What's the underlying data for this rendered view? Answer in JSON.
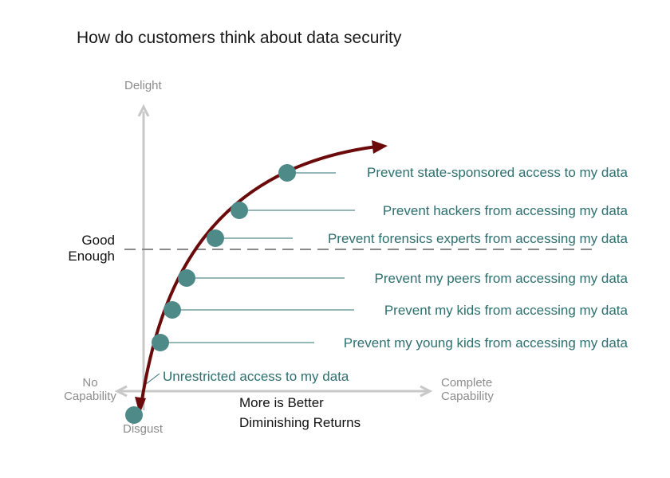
{
  "title": "How do customers think about data security",
  "axes": {
    "top": "Delight",
    "bottom": "Disgust",
    "left": "No Capability",
    "right": "Complete Capability"
  },
  "threshold_label": "Good Enough",
  "curve_notes": {
    "line1": "More is Better",
    "line2": "Diminishing Returns"
  },
  "items": [
    "Unrestricted access to my data",
    "Prevent my young kids from accessing my data",
    "Prevent my kids from accessing my data",
    "Prevent my peers from accessing my data",
    "Prevent forensics experts from accessing my data",
    "Prevent hackers from accessing my data",
    "Prevent state-sponsored access to my data"
  ],
  "colors": {
    "curve": "#6b0a0a",
    "point": "#4e8a88",
    "label": "#2e6f6f",
    "axis": "#c8c8c8",
    "threshold": "#8a8a8a"
  }
}
